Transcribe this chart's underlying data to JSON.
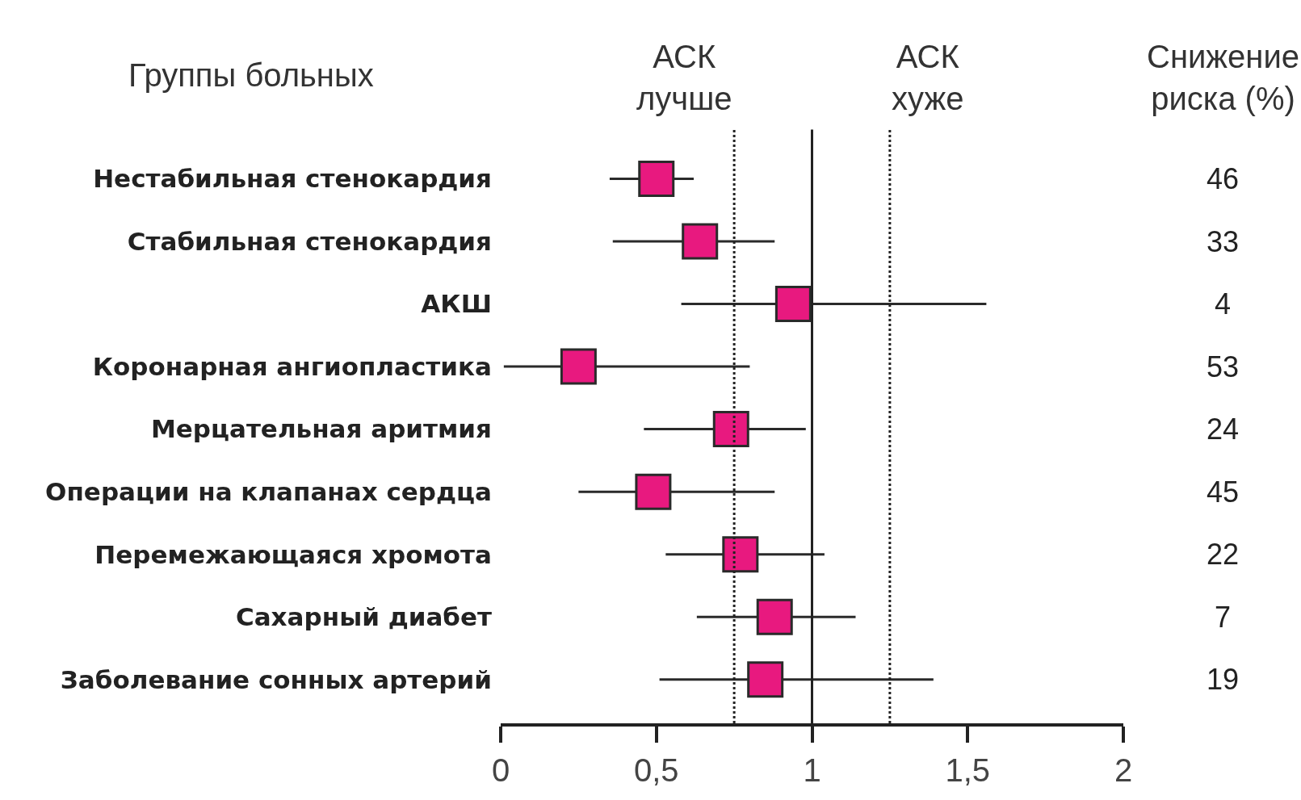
{
  "chart_data": {
    "type": "scatter",
    "orientation": "horizontal",
    "ylabel": "Группы больных",
    "categories": [
      "Нестабильная стенокардия",
      "Стабильная стенокардия",
      "АКШ",
      "Коронарная ангиопластика",
      "Мерцательная аритмия",
      "Операции на клапанах сердца",
      "Перемежающаяся хромота",
      "Сахарный диабет",
      "Заболевание сонных артерий"
    ],
    "values": [
      0.5,
      0.64,
      0.94,
      0.25,
      0.74,
      0.49,
      0.77,
      0.88,
      0.85
    ],
    "errors": [
      [
        0.35,
        0.62
      ],
      [
        0.36,
        0.88
      ],
      [
        0.58,
        1.56
      ],
      [
        0.01,
        0.8
      ],
      [
        0.46,
        0.98
      ],
      [
        0.25,
        0.88
      ],
      [
        0.53,
        1.04
      ],
      [
        0.63,
        1.14
      ],
      [
        0.51,
        1.39
      ]
    ],
    "color": "#e8197f",
    "marker": "square",
    "grid": false,
    "legend": false,
    "xlim": [
      0,
      2
    ],
    "xticks": [
      {
        "value": 0,
        "label": "0"
      },
      {
        "value": 0.5,
        "label": "0,5"
      },
      {
        "value": 1,
        "label": "1"
      },
      {
        "value": 1.5,
        "label": "1,5"
      },
      {
        "value": 2,
        "label": "2"
      }
    ],
    "ref_lines": [
      {
        "axis": "x",
        "value": 0.75,
        "label": "АСК лучше",
        "line_style": "dotted"
      },
      {
        "axis": "x",
        "value": 1,
        "label": null,
        "line_style": "solid"
      },
      {
        "axis": "x",
        "value": 1.25,
        "label": "АСК хуже",
        "line_style": "dotted"
      }
    ],
    "annotations": [
      "Снижение риска (%)",
      "46",
      "33",
      "4",
      "53",
      "24",
      "45",
      "22",
      "7",
      "19"
    ]
  }
}
